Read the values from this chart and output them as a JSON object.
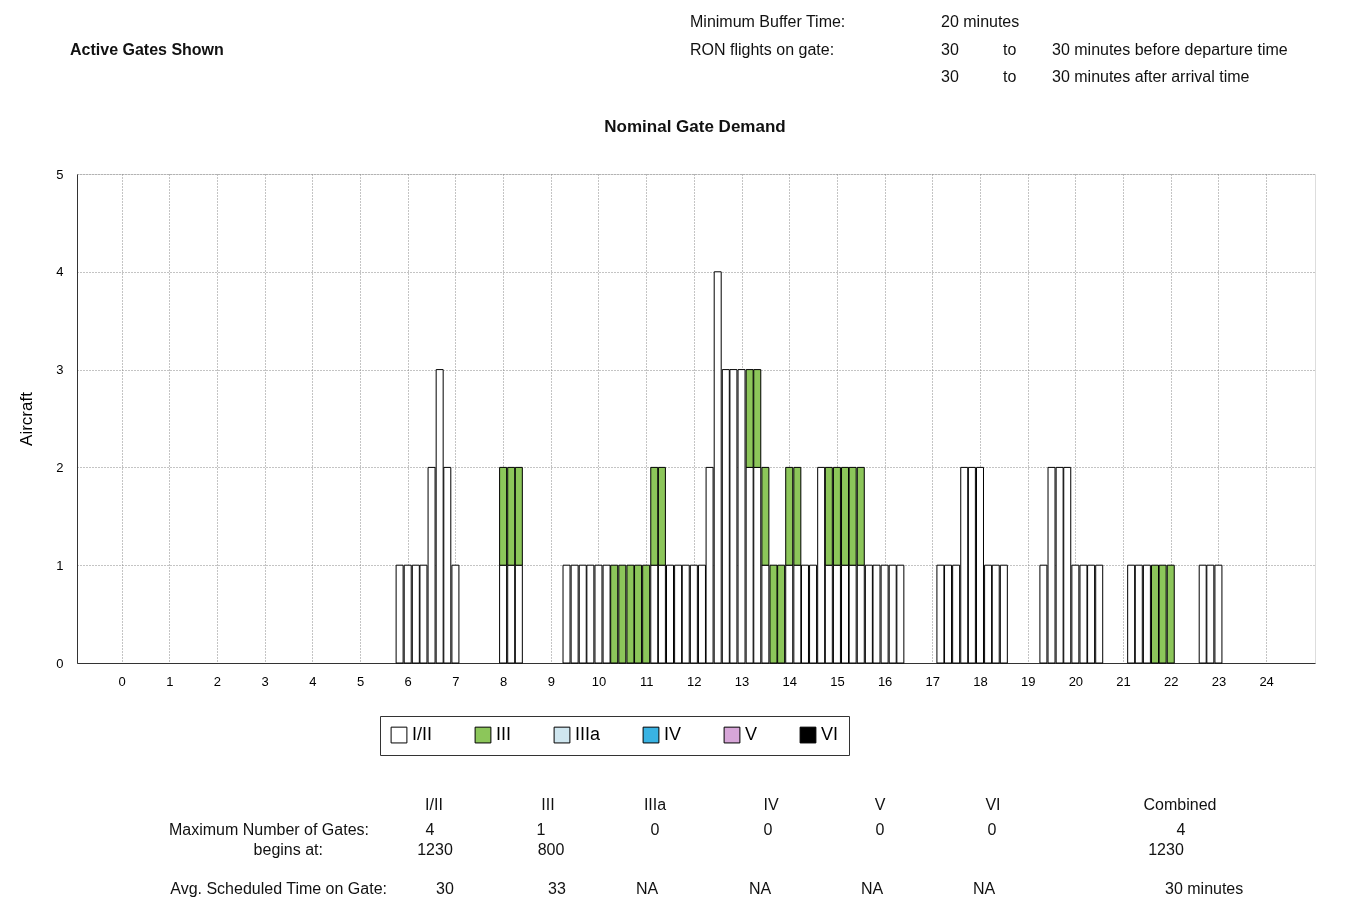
{
  "chart_data": {
    "type": "bar",
    "stacked": true,
    "title": "Nominal Gate Demand",
    "ylabel": "Aircraft",
    "x": [
      5.83,
      6,
      6.17,
      6.33,
      6.5,
      6.67,
      6.83,
      7,
      7.17,
      7.33,
      7.5,
      7.67,
      7.83,
      8,
      8.17,
      8.33,
      8.5,
      8.67,
      8.83,
      9,
      9.17,
      9.33,
      9.5,
      9.67,
      9.83,
      10,
      10.17,
      10.33,
      10.5,
      10.67,
      10.83,
      11,
      11.17,
      11.33,
      11.5,
      11.67,
      11.83,
      12,
      12.17,
      12.33,
      12.5,
      12.67,
      12.83,
      13,
      13.17,
      13.33,
      13.5,
      13.67,
      13.83,
      14,
      14.17,
      14.33,
      14.5,
      14.67,
      14.83,
      15,
      15.17,
      15.33,
      15.5,
      15.67,
      15.83,
      16,
      16.17,
      16.33,
      16.5,
      16.67,
      16.83,
      17,
      17.17,
      17.33,
      17.5,
      17.67,
      17.83,
      18,
      18.17,
      18.33,
      18.5,
      18.67,
      18.83,
      19,
      19.17,
      19.33,
      19.5,
      19.67,
      19.83,
      20,
      20.17,
      20.33,
      20.5,
      20.67,
      20.83,
      21,
      21.17,
      21.33,
      21.5,
      21.67,
      21.83,
      22,
      22.17,
      22.33,
      22.5,
      22.67,
      22.83,
      23
    ],
    "series": [
      {
        "name": "I/II",
        "color": "#ffffff",
        "values": [
          1,
          1,
          1,
          1,
          2,
          3,
          2,
          1,
          0,
          0,
          0,
          0,
          0,
          1,
          1,
          1,
          0,
          0,
          0,
          0,
          0,
          1,
          1,
          1,
          1,
          1,
          1,
          0,
          0,
          0,
          0,
          0,
          1,
          1,
          1,
          1,
          1,
          1,
          1,
          2,
          4,
          3,
          3,
          3,
          2,
          2,
          1,
          0,
          0,
          1,
          1,
          1,
          1,
          2,
          1,
          1,
          1,
          1,
          1,
          1,
          1,
          1,
          1,
          1,
          0,
          0,
          0,
          0,
          1,
          1,
          1,
          2,
          2,
          2,
          1,
          1,
          1,
          0,
          0,
          0,
          0,
          1,
          2,
          2,
          2,
          1,
          1,
          1,
          1,
          0,
          0,
          0,
          1,
          1,
          1,
          0,
          0,
          0,
          0,
          0,
          0,
          1,
          1,
          1
        ]
      },
      {
        "name": "III",
        "color": "#8cc65a",
        "values": [
          0,
          0,
          0,
          0,
          0,
          0,
          0,
          0,
          0,
          0,
          0,
          0,
          0,
          1,
          1,
          1,
          0,
          0,
          0,
          0,
          0,
          0,
          0,
          0,
          0,
          0,
          0,
          1,
          1,
          1,
          1,
          1,
          1,
          1,
          0,
          0,
          0,
          0,
          0,
          0,
          0,
          0,
          0,
          0,
          1,
          1,
          1,
          1,
          1,
          1,
          1,
          0,
          0,
          0,
          1,
          1,
          1,
          1,
          1,
          0,
          0,
          0,
          0,
          0,
          0,
          0,
          0,
          0,
          0,
          0,
          0,
          0,
          0,
          0,
          0,
          0,
          0,
          0,
          0,
          0,
          0,
          0,
          0,
          0,
          0,
          0,
          0,
          0,
          0,
          0,
          0,
          0,
          0,
          0,
          0,
          1,
          1,
          1,
          0,
          0,
          0,
          0,
          0,
          0
        ]
      },
      {
        "name": "IIIa",
        "color": "#cfe6ef",
        "values": [
          0,
          0,
          0,
          0,
          0,
          0,
          0,
          0,
          0,
          0,
          0,
          0,
          0,
          0,
          0,
          0,
          0,
          0,
          0,
          0,
          0,
          0,
          0,
          0,
          0,
          0,
          0,
          0,
          0,
          0,
          0,
          0,
          0,
          0,
          0,
          0,
          0,
          0,
          0,
          0,
          0,
          0,
          0,
          0,
          0,
          0,
          0,
          0,
          0,
          0,
          0,
          0,
          0,
          0,
          0,
          0,
          0,
          0,
          0,
          0,
          0,
          0,
          0,
          0,
          0,
          0,
          0,
          0,
          0,
          0,
          0,
          0,
          0,
          0,
          0,
          0,
          0,
          0,
          0,
          0,
          0,
          0,
          0,
          0,
          0,
          0,
          0,
          0,
          0,
          0,
          0,
          0,
          0,
          0,
          0,
          0,
          0,
          0,
          0,
          0,
          0,
          0,
          0,
          0
        ]
      },
      {
        "name": "IV",
        "color": "#39b3e3",
        "values": [
          0,
          0,
          0,
          0,
          0,
          0,
          0,
          0,
          0,
          0,
          0,
          0,
          0,
          0,
          0,
          0,
          0,
          0,
          0,
          0,
          0,
          0,
          0,
          0,
          0,
          0,
          0,
          0,
          0,
          0,
          0,
          0,
          0,
          0,
          0,
          0,
          0,
          0,
          0,
          0,
          0,
          0,
          0,
          0,
          0,
          0,
          0,
          0,
          0,
          0,
          0,
          0,
          0,
          0,
          0,
          0,
          0,
          0,
          0,
          0,
          0,
          0,
          0,
          0,
          0,
          0,
          0,
          0,
          0,
          0,
          0,
          0,
          0,
          0,
          0,
          0,
          0,
          0,
          0,
          0,
          0,
          0,
          0,
          0,
          0,
          0,
          0,
          0,
          0,
          0,
          0,
          0,
          0,
          0,
          0,
          0,
          0,
          0,
          0,
          0,
          0,
          0,
          0,
          0
        ]
      },
      {
        "name": "V",
        "color": "#d7a6d8",
        "values": [
          0,
          0,
          0,
          0,
          0,
          0,
          0,
          0,
          0,
          0,
          0,
          0,
          0,
          0,
          0,
          0,
          0,
          0,
          0,
          0,
          0,
          0,
          0,
          0,
          0,
          0,
          0,
          0,
          0,
          0,
          0,
          0,
          0,
          0,
          0,
          0,
          0,
          0,
          0,
          0,
          0,
          0,
          0,
          0,
          0,
          0,
          0,
          0,
          0,
          0,
          0,
          0,
          0,
          0,
          0,
          0,
          0,
          0,
          0,
          0,
          0,
          0,
          0,
          0,
          0,
          0,
          0,
          0,
          0,
          0,
          0,
          0,
          0,
          0,
          0,
          0,
          0,
          0,
          0,
          0,
          0,
          0,
          0,
          0,
          0,
          0,
          0,
          0,
          0,
          0,
          0,
          0,
          0,
          0,
          0,
          0,
          0,
          0,
          0,
          0,
          0,
          0,
          0,
          0
        ]
      },
      {
        "name": "VI",
        "color": "#000000",
        "values": [
          0,
          0,
          0,
          0,
          0,
          0,
          0,
          0,
          0,
          0,
          0,
          0,
          0,
          0,
          0,
          0,
          0,
          0,
          0,
          0,
          0,
          0,
          0,
          0,
          0,
          0,
          0,
          0,
          0,
          0,
          0,
          0,
          0,
          0,
          0,
          0,
          0,
          0,
          0,
          0,
          0,
          0,
          0,
          0,
          0,
          0,
          0,
          0,
          0,
          0,
          0,
          0,
          0,
          0,
          0,
          0,
          0,
          0,
          0,
          0,
          0,
          0,
          0,
          0,
          0,
          0,
          0,
          0,
          0,
          0,
          0,
          0,
          0,
          0,
          0,
          0,
          0,
          0,
          0,
          0,
          0,
          0,
          0,
          0,
          0,
          0,
          0,
          0,
          0,
          0,
          0,
          0,
          0,
          0,
          0,
          0,
          0,
          0,
          0,
          0,
          0,
          0,
          0,
          0
        ]
      }
    ],
    "xlim": [
      -0.83,
      24.92
    ],
    "xticks": [
      0,
      1,
      2,
      3,
      4,
      5,
      6,
      7,
      8,
      9,
      10,
      11,
      12,
      13,
      14,
      15,
      16,
      17,
      18,
      19,
      20,
      21,
      22,
      23,
      24
    ],
    "ylim": [
      0,
      5
    ],
    "yticks": [
      0,
      1,
      2,
      3,
      4,
      5
    ],
    "grid": true,
    "legend": "bottom",
    "annotations": [
      "Active Gates Shown",
      "Minimum Buffer Time:",
      "20  minutes",
      "RON flights on gate:",
      "30",
      "to",
      "30  minutes before departure time",
      "30",
      "to",
      "30  minutes after arrival time",
      "I/II",
      "III",
      "IIIa",
      "IV",
      "V",
      "VI",
      "Combined",
      "Maximum Number of Gates:",
      "4",
      "1",
      "0",
      "0",
      "0",
      "0",
      "4",
      "begins at:",
      "1230",
      "800",
      "1230",
      "Avg. Scheduled Time on Gate:",
      "30",
      "33",
      "NA",
      "NA",
      "NA",
      "NA",
      "30  minutes"
    ]
  }
}
